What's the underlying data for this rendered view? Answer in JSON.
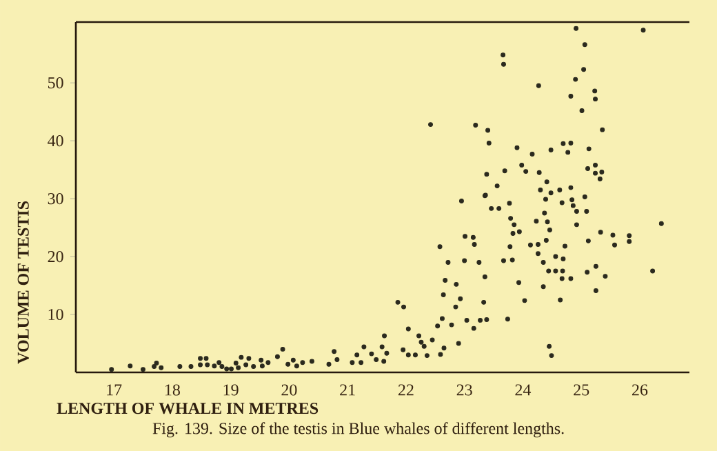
{
  "chart_data": {
    "type": "scatter",
    "xlabel": "LENGTH OF WHALE IN METRES",
    "ylabel": "VOLUME OF TESTIS",
    "annotations": [
      "Fig. 139. Size of the testis in Blue whales of different lengths."
    ],
    "xlim": [
      16.35,
      26.85
    ],
    "ylim": [
      0,
      60.5
    ],
    "xticks": [
      17,
      18,
      19,
      20,
      21,
      22,
      23,
      24,
      25,
      26
    ],
    "yticks": [
      10,
      20,
      30,
      40,
      50
    ],
    "grid": false,
    "series": [
      {
        "color": "#2b2a1e",
        "x": [
          16.96,
          17.28,
          17.5,
          17.69,
          17.73,
          17.81,
          18.13,
          18.32,
          18.48,
          18.58,
          18.48,
          18.6,
          18.72,
          18.8,
          18.85,
          18.93,
          19.01,
          19.09,
          19.13,
          19.18,
          19.26,
          19.31,
          19.39,
          19.52,
          19.54,
          19.64,
          19.8,
          19.89,
          19.98,
          20.07,
          20.13,
          20.23,
          20.39,
          20.68,
          20.77,
          20.82,
          21.08,
          21.16,
          21.23,
          21.28,
          21.41,
          21.49,
          21.59,
          21.63,
          21.62,
          21.67,
          21.86,
          21.96,
          22.04,
          21.95,
          22.04,
          22.16,
          22.22,
          22.26,
          24.91,
          26.06,
          25.06,
          23.66,
          23.67,
          25.04,
          24.9,
          24.27,
          25.23,
          24.82,
          25.24,
          25.01,
          22.42,
          23.19,
          23.4,
          25.36,
          23.42,
          23.9,
          24.69,
          24.82,
          25.13,
          24.16,
          24.48,
          24.77,
          23.98,
          25.24,
          23.38,
          23.69,
          24.05,
          24.28,
          25.11,
          25.24,
          25.35,
          25.32,
          23.56,
          24.41,
          23.35,
          24.3,
          24.48,
          24.63,
          24.82,
          22.95,
          23.36,
          23.77,
          24.39,
          24.67,
          24.84,
          24.86,
          25.06,
          23.46,
          23.59,
          24.37,
          24.92,
          25.09,
          23.79,
          24.23,
          24.42,
          23.85,
          24.92,
          24.46,
          26.37,
          23.83,
          23.94,
          25.33,
          25.54,
          25.82,
          23.01,
          23.15,
          24.4,
          25.12,
          25.82,
          23.17,
          24.13,
          24.26,
          25.57,
          22.58,
          23.78,
          24.72,
          24.26,
          24.56,
          22.72,
          23.0,
          23.25,
          23.67,
          23.82,
          24.35,
          24.69,
          25.25,
          24.44,
          24.56,
          24.68,
          25.1,
          23.35,
          24.67,
          24.82,
          25.41,
          26.22,
          22.67,
          22.86,
          23.93,
          24.35,
          25.25,
          22.64,
          22.93,
          23.33,
          24.03,
          24.64,
          22.85,
          22.62,
          23.04,
          23.27,
          23.38,
          23.74,
          22.54,
          22.78,
          23.16,
          22.45,
          22.9,
          22.31,
          22.65,
          24.45,
          24.49,
          22.36,
          22.59
        ],
        "values": [
          0.5,
          1.1,
          0.5,
          1.0,
          1.6,
          0.8,
          1.0,
          1.0,
          2.4,
          2.4,
          1.3,
          1.3,
          1.1,
          1.7,
          1.0,
          0.6,
          0.6,
          1.6,
          0.8,
          2.6,
          1.3,
          2.4,
          1.0,
          2.1,
          1.1,
          1.7,
          2.7,
          4.0,
          1.4,
          2.1,
          1.1,
          1.7,
          1.9,
          1.4,
          3.6,
          2.2,
          1.7,
          3.0,
          1.7,
          4.4,
          3.2,
          2.2,
          4.4,
          6.3,
          1.9,
          3.3,
          12.1,
          11.3,
          7.5,
          3.9,
          3.0,
          3.0,
          6.3,
          5.2,
          59.4,
          59.1,
          56.6,
          54.8,
          53.2,
          52.3,
          50.6,
          49.5,
          48.6,
          47.7,
          47.2,
          45.2,
          42.8,
          42.7,
          41.8,
          41.9,
          39.6,
          38.8,
          39.5,
          39.6,
          38.6,
          37.7,
          38.4,
          38.0,
          35.8,
          35.8,
          34.2,
          34.8,
          34.7,
          34.5,
          35.2,
          34.4,
          34.6,
          33.4,
          32.2,
          32.9,
          30.5,
          31.5,
          31.0,
          31.5,
          31.9,
          29.6,
          30.6,
          29.2,
          29.9,
          29.3,
          29.8,
          28.8,
          30.3,
          28.3,
          28.3,
          27.5,
          27.8,
          27.8,
          26.6,
          26.1,
          26.0,
          25.5,
          25.5,
          24.6,
          25.7,
          24.0,
          24.3,
          24.2,
          23.7,
          23.6,
          23.5,
          23.3,
          22.8,
          22.7,
          22.6,
          22.1,
          22.0,
          22.1,
          22.0,
          21.7,
          21.7,
          21.8,
          20.5,
          20.0,
          19.0,
          19.3,
          19.0,
          19.3,
          19.4,
          19.0,
          19.6,
          18.3,
          17.5,
          17.5,
          17.5,
          17.3,
          16.5,
          16.2,
          16.2,
          16.6,
          17.5,
          15.9,
          15.2,
          15.5,
          14.8,
          14.1,
          13.4,
          12.7,
          12.1,
          12.4,
          12.5,
          11.3,
          9.3,
          9.0,
          9.0,
          9.1,
          9.2,
          8.0,
          8.2,
          7.6,
          5.6,
          5.0,
          4.5,
          4.2,
          4.5,
          2.9,
          2.9,
          3.1
        ]
      }
    ]
  }
}
